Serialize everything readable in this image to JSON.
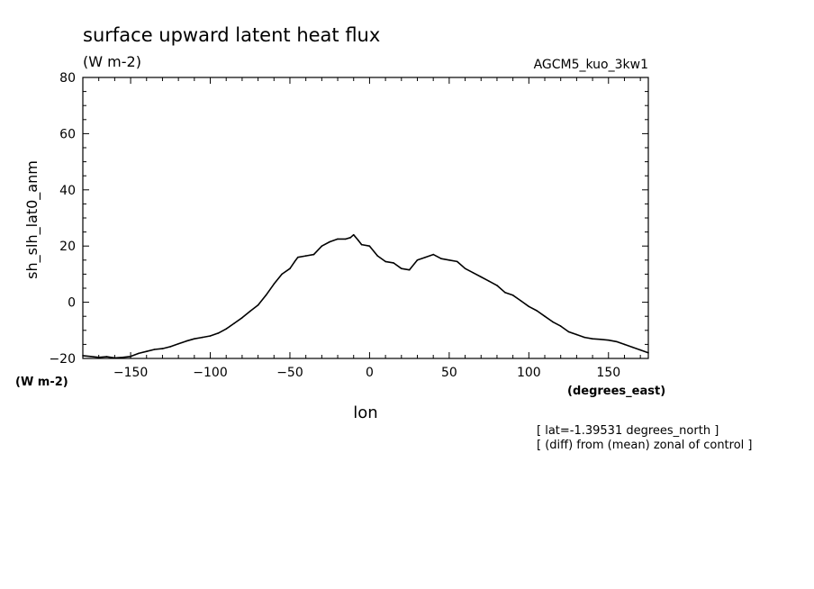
{
  "chart_data": {
    "type": "line",
    "title": "surface upward latent heat flux",
    "subtitle": "(W m-2)",
    "run_label": "AGCM5_kuo_3kw1",
    "ylabel": "sh_slh_lat0_anm",
    "y_units": "(W m-2)",
    "xlabel": "lon",
    "x_units": "(degrees_east)",
    "annotations": [
      "[ lat=-1.39531 degrees_north ]",
      "[ (diff) from (mean) zonal of control ]"
    ],
    "xlim": [
      -180,
      175
    ],
    "ylim": [
      -20,
      80
    ],
    "xticks": [
      -150,
      -100,
      -50,
      0,
      50,
      100,
      150
    ],
    "yticks": [
      -20,
      0,
      20,
      40,
      60,
      80
    ],
    "grid": false,
    "series": [
      {
        "x": [
          -180,
          -175,
          -170,
          -165,
          -160,
          -155,
          -150,
          -145,
          -140,
          -135,
          -130,
          -125,
          -120,
          -115,
          -110,
          -105,
          -100,
          -95,
          -90,
          -85,
          -80,
          -75,
          -70,
          -65,
          -60,
          -55,
          -50,
          -47,
          -45,
          -40,
          -35,
          -30,
          -25,
          -20,
          -15,
          -12,
          -10,
          -7,
          -5,
          0,
          5,
          10,
          15,
          20,
          25,
          30,
          35,
          40,
          45,
          50,
          55,
          60,
          65,
          70,
          75,
          80,
          85,
          90,
          95,
          100,
          105,
          110,
          115,
          120,
          125,
          130,
          135,
          140,
          145,
          150,
          155,
          160,
          165,
          170,
          175
        ],
        "y": [
          -19,
          -19.3,
          -19.6,
          -19.4,
          -19.8,
          -19.6,
          -19.3,
          -18.2,
          -17.5,
          -16.8,
          -16.5,
          -15.8,
          -14.8,
          -13.8,
          -13,
          -12.5,
          -12,
          -11,
          -9.5,
          -7.5,
          -5.5,
          -3.2,
          -1,
          2.5,
          6.5,
          10,
          12,
          14.5,
          16,
          16.5,
          17,
          20,
          21.5,
          22.5,
          22.5,
          23,
          24,
          22,
          20.5,
          20,
          16.5,
          14.5,
          14,
          12,
          11.5,
          15,
          16,
          17,
          15.5,
          15,
          14.5,
          12,
          10.5,
          9,
          7.5,
          6,
          3.5,
          2.5,
          0.5,
          -1.5,
          -3,
          -5,
          -7,
          -8.5,
          -10.5,
          -11.5,
          -12.5,
          -13,
          -13.2,
          -13.5,
          -14,
          -15,
          -16,
          -17,
          -18
        ]
      }
    ]
  }
}
